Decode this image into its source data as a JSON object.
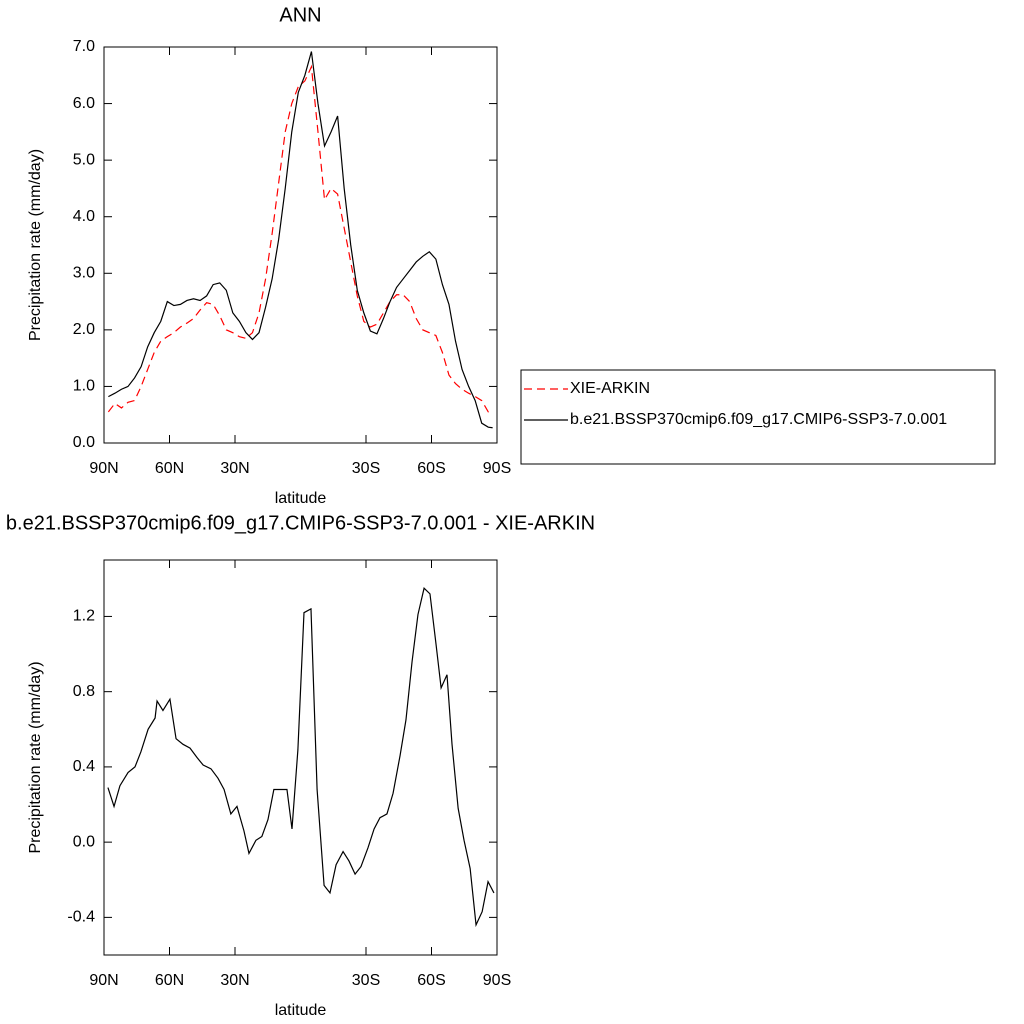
{
  "chart_data": [
    {
      "type": "line",
      "title": "ANN",
      "x_label": "latitude",
      "y_label": "Precipitation rate (mm/day)",
      "xlim": [
        90,
        -90
      ],
      "xticks": [
        {
          "value": 90,
          "label": "90N"
        },
        {
          "value": 60,
          "label": "60N"
        },
        {
          "value": 30,
          "label": "30N"
        },
        {
          "value": -30,
          "label": "30S"
        },
        {
          "value": -60,
          "label": "60S"
        },
        {
          "value": -90,
          "label": "90S"
        }
      ],
      "ylim": [
        0,
        7
      ],
      "yticks": [
        {
          "value": 0,
          "label": "0.0"
        },
        {
          "value": 1,
          "label": "1.0"
        },
        {
          "value": 2,
          "label": "2.0"
        },
        {
          "value": 3,
          "label": "3.0"
        },
        {
          "value": 4,
          "label": "4.0"
        },
        {
          "value": 5,
          "label": "5.0"
        },
        {
          "value": 6,
          "label": "6.0"
        },
        {
          "value": 7,
          "label": "7.0"
        }
      ],
      "legend": "outside-right",
      "x": [
        88,
        85,
        82,
        79,
        76,
        73,
        70,
        67,
        64,
        61,
        58,
        55,
        52,
        49,
        46,
        43,
        40,
        37,
        34,
        31,
        28,
        25,
        22,
        19,
        16,
        13,
        10,
        7,
        4,
        1,
        -2,
        -5,
        -8,
        -11,
        -14,
        -17,
        -20,
        -23,
        -26,
        -29,
        -32,
        -35,
        -38,
        -41,
        -44,
        -47,
        -50,
        -53,
        -56,
        -59,
        -62,
        -65,
        -68,
        -71,
        -74,
        -77,
        -80,
        -83,
        -86,
        -88
      ],
      "series": [
        {
          "name": "XIE-ARKIN",
          "color": "#ff0000",
          "dash": "dashed",
          "values": [
            0.55,
            0.7,
            0.62,
            0.72,
            0.75,
            1.0,
            1.3,
            1.6,
            1.8,
            1.88,
            1.95,
            2.05,
            2.12,
            2.2,
            2.35,
            2.48,
            2.45,
            2.25,
            2.0,
            1.95,
            1.88,
            1.85,
            1.95,
            2.3,
            2.9,
            3.7,
            4.6,
            5.5,
            6.0,
            6.3,
            6.4,
            6.65,
            5.5,
            4.3,
            4.5,
            4.4,
            3.8,
            3.2,
            2.6,
            2.15,
            2.05,
            2.1,
            2.3,
            2.5,
            2.62,
            2.62,
            2.5,
            2.2,
            2.0,
            1.95,
            1.9,
            1.6,
            1.2,
            1.05,
            0.95,
            0.88,
            0.82,
            0.75,
            0.55,
            0.52
          ]
        },
        {
          "name": "b.e21.BSSP370cmip6.f09_g17.CMIP6-SSP3-7.0.001",
          "color": "#000000",
          "dash": "solid",
          "values": [
            0.82,
            0.88,
            0.95,
            1.0,
            1.15,
            1.35,
            1.7,
            1.95,
            2.15,
            2.5,
            2.43,
            2.45,
            2.52,
            2.55,
            2.52,
            2.6,
            2.8,
            2.83,
            2.7,
            2.3,
            2.15,
            1.95,
            1.83,
            1.95,
            2.4,
            2.9,
            3.6,
            4.5,
            5.5,
            6.2,
            6.5,
            6.92,
            6.0,
            5.25,
            5.5,
            5.78,
            4.5,
            3.5,
            2.7,
            2.3,
            1.98,
            1.93,
            2.2,
            2.5,
            2.75,
            2.9,
            3.05,
            3.2,
            3.3,
            3.38,
            3.25,
            2.8,
            2.45,
            1.8,
            1.3,
            1.0,
            0.75,
            0.35,
            0.28,
            0.27
          ]
        }
      ]
    },
    {
      "type": "line",
      "title": "b.e21.BSSP370cmip6.f09_g17.CMIP6-SSP3-7.0.001 - XIE-ARKIN",
      "x_label": "latitude",
      "y_label": "Precipitation rate (mm/day)",
      "xlim": [
        90,
        -90
      ],
      "xticks": [
        {
          "value": 90,
          "label": "90N"
        },
        {
          "value": 60,
          "label": "60N"
        },
        {
          "value": 30,
          "label": "30N"
        },
        {
          "value": -30,
          "label": "30S"
        },
        {
          "value": -60,
          "label": "60S"
        },
        {
          "value": -90,
          "label": "90S"
        }
      ],
      "ylim": [
        -0.6,
        1.5
      ],
      "yticks": [
        -0.4,
        {
          "value": 0,
          "label": "0.0"
        },
        0.4,
        0.8,
        1.2
      ],
      "x": [
        88.2,
        85.4,
        82.7,
        79.0,
        75.8,
        73.1,
        69.8,
        66.6,
        65.7,
        63.0,
        59.8,
        57.0,
        53.8,
        50.6,
        47.4,
        44.6,
        41.0,
        37.8,
        35.0,
        31.9,
        29.1,
        25.9,
        23.6,
        20.4,
        17.7,
        14.9,
        12.2,
        8.9,
        6.2,
        3.9,
        1.2,
        -1.6,
        -4.8,
        -7.6,
        -10.8,
        -13.5,
        -16.3,
        -19.5,
        -22.2,
        -25.0,
        -27.7,
        -30.9,
        -33.7,
        -36.4,
        -39.6,
        -42.4,
        -45.6,
        -48.3,
        -51.1,
        -53.8,
        -56.6,
        -59.3,
        -62.1,
        -64.4,
        -67.1,
        -69.4,
        -72.2,
        -74.9,
        -77.7,
        -80.4,
        -83.2,
        -85.9,
        -88.6
      ],
      "series": [
        {
          "color": "#000000",
          "dash": "solid",
          "values": [
            0.29,
            0.19,
            0.3,
            0.37,
            0.4,
            0.48,
            0.6,
            0.66,
            0.75,
            0.7,
            0.76,
            0.55,
            0.52,
            0.5,
            0.45,
            0.41,
            0.39,
            0.34,
            0.28,
            0.15,
            0.19,
            0.06,
            -0.06,
            0.01,
            0.03,
            0.12,
            0.28,
            0.28,
            0.28,
            0.07,
            0.49,
            1.22,
            1.24,
            0.28,
            -0.23,
            -0.27,
            -0.12,
            -0.05,
            -0.1,
            -0.17,
            -0.13,
            -0.03,
            0.07,
            0.13,
            0.15,
            0.26,
            0.46,
            0.65,
            0.96,
            1.21,
            1.35,
            1.32,
            1.05,
            0.82,
            0.89,
            0.52,
            0.18,
            0.01,
            -0.14,
            -0.44,
            -0.37,
            -0.21,
            -0.27
          ]
        }
      ]
    }
  ]
}
